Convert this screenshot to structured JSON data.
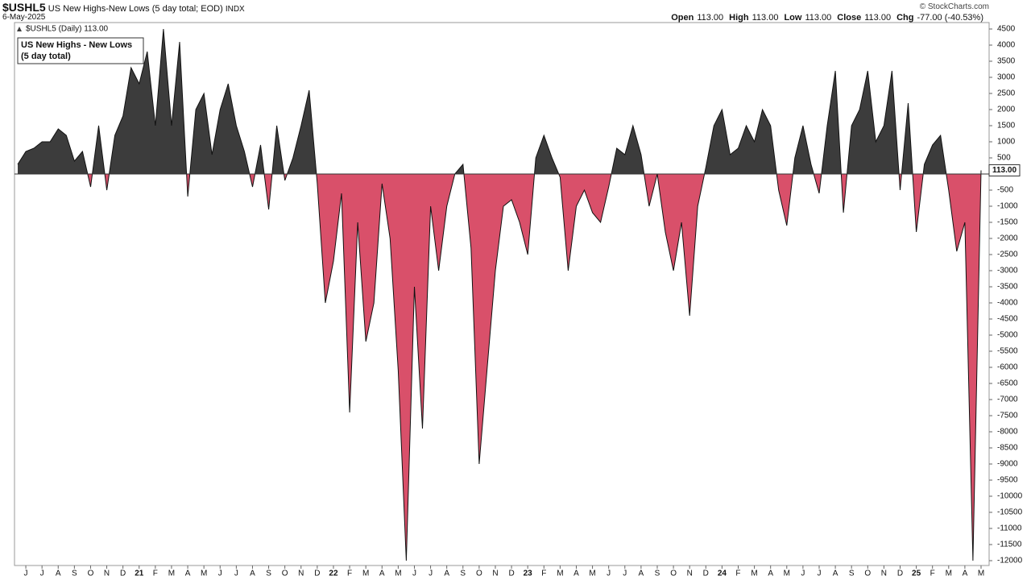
{
  "header": {
    "symbol": "$USHL5",
    "description": "US New Highs-New Lows (5 day total; EOD)",
    "exchange": "INDX",
    "date": "6-May-2025",
    "copyright": "© StockCharts.com",
    "quote": [
      {
        "label": "Open",
        "value": "113.00"
      },
      {
        "label": "High",
        "value": "113.00"
      },
      {
        "label": "Low",
        "value": "113.00"
      },
      {
        "label": "Close",
        "value": "113.00"
      },
      {
        "label": "Chg",
        "value": "-77.00 (-40.53%)"
      }
    ]
  },
  "chart_data": {
    "type": "area",
    "legend_label": "$USHL5 (Daily) 113.00",
    "annotation": [
      "US New Highs - New Lows",
      "(5 day total)"
    ],
    "value_tag": "113.00",
    "positive_color": "#3c3c3c",
    "negative_color": "#d9506a",
    "x": [
      "2020-05",
      "2020-06",
      "2020-06",
      "2020-07",
      "2020-07",
      "2020-08",
      "2020-08",
      "2020-09",
      "2020-09",
      "2020-10",
      "2020-10",
      "2020-11",
      "2020-11",
      "2020-12",
      "2020-12",
      "2021-01",
      "2021-01",
      "2021-02",
      "2021-02",
      "2021-03",
      "2021-03",
      "2021-04",
      "2021-04",
      "2021-05",
      "2021-05",
      "2021-06",
      "2021-06",
      "2021-07",
      "2021-07",
      "2021-08",
      "2021-08",
      "2021-09",
      "2021-09",
      "2021-10",
      "2021-10",
      "2021-11",
      "2021-11",
      "2021-12",
      "2021-12",
      "2022-01",
      "2022-01",
      "2022-02",
      "2022-02",
      "2022-03",
      "2022-03",
      "2022-04",
      "2022-04",
      "2022-05",
      "2022-05",
      "2022-06",
      "2022-06",
      "2022-07",
      "2022-07",
      "2022-08",
      "2022-08",
      "2022-09",
      "2022-09",
      "2022-10",
      "2022-10",
      "2022-11",
      "2022-11",
      "2022-12",
      "2022-12",
      "2023-01",
      "2023-01",
      "2023-02",
      "2023-02",
      "2023-03",
      "2023-03",
      "2023-04",
      "2023-04",
      "2023-05",
      "2023-05",
      "2023-06",
      "2023-06",
      "2023-07",
      "2023-07",
      "2023-08",
      "2023-08",
      "2023-09",
      "2023-09",
      "2023-10",
      "2023-10",
      "2023-11",
      "2023-11",
      "2023-12",
      "2023-12",
      "2024-01",
      "2024-01",
      "2024-02",
      "2024-02",
      "2024-03",
      "2024-03",
      "2024-04",
      "2024-04",
      "2024-05",
      "2024-05",
      "2024-06",
      "2024-06",
      "2024-07",
      "2024-07",
      "2024-08",
      "2024-08",
      "2024-09",
      "2024-09",
      "2024-10",
      "2024-10",
      "2024-11",
      "2024-11",
      "2024-12",
      "2024-12",
      "2025-01",
      "2025-01",
      "2025-02",
      "2025-02",
      "2025-03",
      "2025-03",
      "2025-04",
      "2025-04",
      "2025-05"
    ],
    "values": [
      300,
      700,
      800,
      1000,
      1000,
      1400,
      1200,
      400,
      700,
      -400,
      1500,
      -500,
      1200,
      1800,
      3300,
      2800,
      3800,
      1500,
      4500,
      1500,
      4100,
      -700,
      2000,
      2500,
      600,
      2000,
      2800,
      1500,
      700,
      -400,
      900,
      -1100,
      1500,
      -200,
      500,
      1500,
      2600,
      -300,
      -4000,
      -2700,
      -600,
      -7400,
      -1500,
      -5200,
      -4000,
      -300,
      -2000,
      -6100,
      -12000,
      -3500,
      -7900,
      -1000,
      -3000,
      -1000,
      0,
      300,
      -2300,
      -9000,
      -6000,
      -3000,
      -1000,
      -800,
      -1500,
      -2500,
      500,
      1200,
      500,
      -100,
      -3000,
      -1000,
      -500,
      -1200,
      -1500,
      -400,
      800,
      600,
      1500,
      600,
      -1000,
      0,
      -1800,
      -3000,
      -1500,
      -4400,
      -1000,
      200,
      1500,
      2000,
      600,
      800,
      1500,
      1000,
      2000,
      1500,
      -500,
      -1600,
      500,
      1500,
      300,
      -600,
      1500,
      3200,
      -1200,
      1500,
      2000,
      3200,
      1000,
      1500,
      3200,
      -500,
      2200,
      -1800,
      300,
      900,
      1200,
      -500,
      -2400,
      -1500,
      -12000,
      113
    ],
    "xticks": [
      {
        "value": "2020-06",
        "label": "J"
      },
      {
        "value": "2020-07",
        "label": "J"
      },
      {
        "value": "2020-08",
        "label": "A"
      },
      {
        "value": "2020-09",
        "label": "S"
      },
      {
        "value": "2020-10",
        "label": "O"
      },
      {
        "value": "2020-11",
        "label": "N"
      },
      {
        "value": "2020-12",
        "label": "D"
      },
      {
        "value": "2021-01",
        "label": "21"
      },
      {
        "value": "2021-02",
        "label": "F"
      },
      {
        "value": "2021-03",
        "label": "M"
      },
      {
        "value": "2021-04",
        "label": "A"
      },
      {
        "value": "2021-05",
        "label": "M"
      },
      {
        "value": "2021-06",
        "label": "J"
      },
      {
        "value": "2021-07",
        "label": "J"
      },
      {
        "value": "2021-08",
        "label": "A"
      },
      {
        "value": "2021-09",
        "label": "S"
      },
      {
        "value": "2021-10",
        "label": "O"
      },
      {
        "value": "2021-11",
        "label": "N"
      },
      {
        "value": "2021-12",
        "label": "D"
      },
      {
        "value": "2022-01",
        "label": "22"
      },
      {
        "value": "2022-02",
        "label": "F"
      },
      {
        "value": "2022-03",
        "label": "M"
      },
      {
        "value": "2022-04",
        "label": "A"
      },
      {
        "value": "2022-05",
        "label": "M"
      },
      {
        "value": "2022-06",
        "label": "J"
      },
      {
        "value": "2022-07",
        "label": "J"
      },
      {
        "value": "2022-08",
        "label": "A"
      },
      {
        "value": "2022-09",
        "label": "S"
      },
      {
        "value": "2022-10",
        "label": "O"
      },
      {
        "value": "2022-11",
        "label": "N"
      },
      {
        "value": "2022-12",
        "label": "D"
      },
      {
        "value": "2023-01",
        "label": "23"
      },
      {
        "value": "2023-02",
        "label": "F"
      },
      {
        "value": "2023-03",
        "label": "M"
      },
      {
        "value": "2023-04",
        "label": "A"
      },
      {
        "value": "2023-05",
        "label": "M"
      },
      {
        "value": "2023-06",
        "label": "J"
      },
      {
        "value": "2023-07",
        "label": "J"
      },
      {
        "value": "2023-08",
        "label": "A"
      },
      {
        "value": "2023-09",
        "label": "S"
      },
      {
        "value": "2023-10",
        "label": "O"
      },
      {
        "value": "2023-11",
        "label": "N"
      },
      {
        "value": "2023-12",
        "label": "D"
      },
      {
        "value": "2024-01",
        "label": "24"
      },
      {
        "value": "2024-02",
        "label": "F"
      },
      {
        "value": "2024-03",
        "label": "M"
      },
      {
        "value": "2024-04",
        "label": "A"
      },
      {
        "value": "2024-05",
        "label": "M"
      },
      {
        "value": "2024-06",
        "label": "J"
      },
      {
        "value": "2024-07",
        "label": "J"
      },
      {
        "value": "2024-08",
        "label": "A"
      },
      {
        "value": "2024-09",
        "label": "S"
      },
      {
        "value": "2024-10",
        "label": "O"
      },
      {
        "value": "2024-11",
        "label": "N"
      },
      {
        "value": "2024-12",
        "label": "D"
      },
      {
        "value": "2025-01",
        "label": "25"
      },
      {
        "value": "2025-02",
        "label": "F"
      },
      {
        "value": "2025-03",
        "label": "M"
      },
      {
        "value": "2025-04",
        "label": "A"
      },
      {
        "value": "2025-05",
        "label": "M"
      }
    ],
    "ylim": [
      -12150,
      4700
    ],
    "yticks": [
      4500,
      4000,
      3500,
      3000,
      2500,
      2000,
      1500,
      1000,
      500,
      -500,
      -1000,
      -1500,
      -2000,
      -2500,
      -3000,
      -3500,
      -4000,
      -4500,
      -5000,
      -5500,
      -6000,
      -6500,
      -7000,
      -7500,
      -8000,
      -8500,
      -9000,
      -9500,
      -10000,
      -10500,
      -11000,
      -11500,
      -12000
    ]
  }
}
